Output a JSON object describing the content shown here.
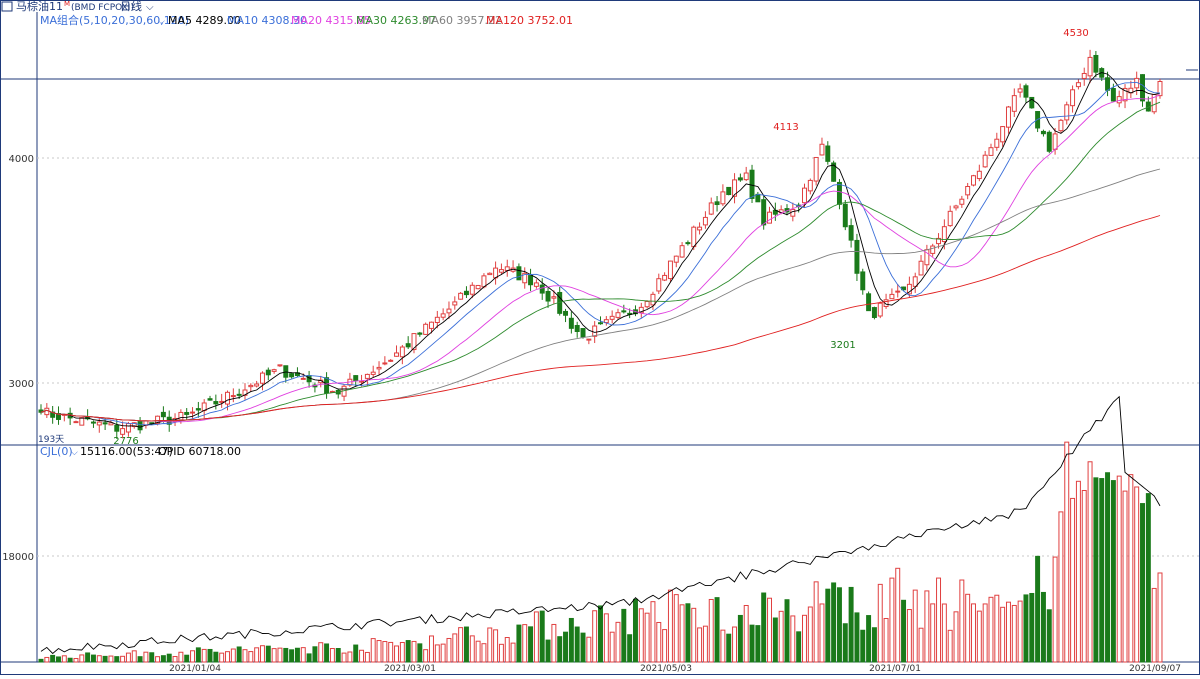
{
  "window": {
    "title_icon": "window-icon",
    "title": "马棕油11",
    "title_sup": "M",
    "title_code": "(BMD FCPOXI)",
    "period": "日线",
    "dropdown_icon": "chevron-down-icon"
  },
  "ma_legend": {
    "group": "MA组合(5,10,20,30,60,120)",
    "items": [
      {
        "label": "MA5 4289.00",
        "color": "#000000"
      },
      {
        "label": "MA10 4308.30",
        "color": "#3b6fd8"
      },
      {
        "label": "MA20 4315.85",
        "color": "#e040e0"
      },
      {
        "label": "MA30 4263.97",
        "color": "#2e8b2e"
      },
      {
        "label": "MA60 3957.22",
        "color": "#808080"
      },
      {
        "label": "MA120 3752.01",
        "color": "#e02020"
      }
    ]
  },
  "vol_legend": {
    "group": "CJL(0)",
    "items": [
      {
        "label": "15116.00(53:47)",
        "color": "#000000"
      },
      {
        "label": "OPID 60718.00",
        "color": "#000000"
      }
    ]
  },
  "price_axis": {
    "ticks": [
      "4000",
      "3000"
    ]
  },
  "volume_axis": {
    "ticks": [
      "18000"
    ]
  },
  "date_axis": {
    "ticks": [
      "2021/01/04",
      "2021/03/01",
      "2021/05/03",
      "2021/07/01",
      "2021/09/07"
    ]
  },
  "annotations": {
    "high": "4530",
    "peak_may": "4113",
    "low_jun": "3201",
    "low_jan": "2776",
    "days": "193天"
  },
  "colors": {
    "up": "#e04040",
    "down": "#1a7a1a",
    "grid": "#c8c8c8",
    "axis": "#1f3a7a"
  },
  "chart_data": {
    "type": "candlestick",
    "count": 193,
    "price_ylim": [
      2760,
      4560
    ],
    "price_key_points": [
      {
        "bar": 0,
        "close": 2870
      },
      {
        "bar": 13,
        "close": 2800,
        "label": "2776"
      },
      {
        "bar": 25,
        "close": 2850
      },
      {
        "bar": 32,
        "close": 2940
      },
      {
        "bar": 41,
        "close": 3060
      },
      {
        "bar": 51,
        "close": 2960
      },
      {
        "bar": 60,
        "close": 3110
      },
      {
        "bar": 71,
        "close": 3350
      },
      {
        "bar": 78,
        "close": 3520
      },
      {
        "bar": 85,
        "close": 3450
      },
      {
        "bar": 93,
        "close": 3200
      },
      {
        "bar": 103,
        "close": 3350
      },
      {
        "bar": 110,
        "close": 3600
      },
      {
        "bar": 117,
        "close": 3850
      },
      {
        "bar": 121,
        "close": 3910
      },
      {
        "bar": 124,
        "close": 3720
      },
      {
        "bar": 130,
        "close": 3800
      },
      {
        "bar": 134,
        "close": 4050,
        "label": "4113"
      },
      {
        "bar": 137,
        "close": 3820
      },
      {
        "bar": 142,
        "close": 3300,
        "label": "3201"
      },
      {
        "bar": 148,
        "close": 3400
      },
      {
        "bar": 155,
        "close": 3700
      },
      {
        "bar": 161,
        "close": 3950
      },
      {
        "bar": 168,
        "close": 4300
      },
      {
        "bar": 173,
        "close": 4050
      },
      {
        "bar": 180,
        "close": 4450,
        "label": "4530"
      },
      {
        "bar": 184,
        "close": 4250
      },
      {
        "bar": 188,
        "close": 4340
      },
      {
        "bar": 190,
        "close": 4220
      },
      {
        "bar": 192,
        "close": 4340
      }
    ],
    "ma_endpoints": {
      "MA5": 4289.0,
      "MA10": 4308.3,
      "MA20": 4315.85,
      "MA30": 4263.97,
      "MA60": 3957.22,
      "MA120": 3752.01
    },
    "volume_ylim": [
      0,
      45000
    ],
    "volume_last": 15116.0,
    "open_interest_last": 60718.0
  }
}
